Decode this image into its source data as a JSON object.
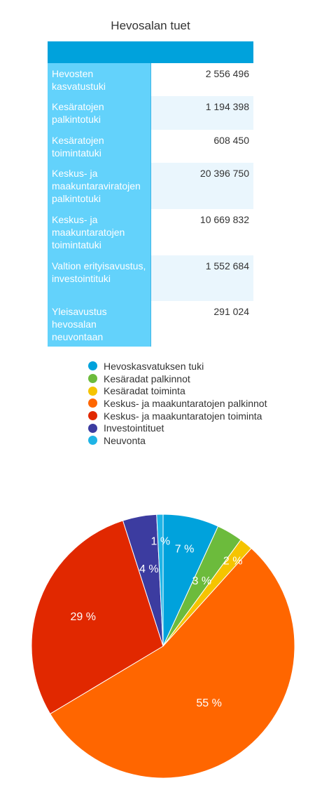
{
  "title": "Hevosalan tuet",
  "table": {
    "rows": [
      {
        "label": "Hevosten kasvatustuki",
        "value": "2 556 496"
      },
      {
        "label": "Kesäratojen palkintotuki",
        "value": "1 194 398"
      },
      {
        "label": "Kesäratojen toimintatuki",
        "value": "608 450"
      },
      {
        "label": "Keskus- ja maakuntaraviratojen palkintotuki",
        "value": "20 396 750"
      },
      {
        "label": "Keskus- ja maakuntaratojen toimintatuki",
        "value": "10 669 832"
      },
      {
        "label": "Valtion erityisavustus, investointituki",
        "value": "1 552 684"
      },
      {
        "label": "Yleisavustus hevosalan neuvontaan",
        "value": "291 024"
      }
    ]
  },
  "chart_data": {
    "type": "pie",
    "title": "Hevosalan tuet",
    "legend_position": "top",
    "series": [
      {
        "name": "Hevoskasvatuksen tuki",
        "value": 2556496,
        "label": "7 %",
        "color": "#00a2dc"
      },
      {
        "name": "Kesäradat palkinnot",
        "value": 1194398,
        "label": "3 %",
        "color": "#6cbb3c"
      },
      {
        "name": "Kesäradat toiminta",
        "value": 608450,
        "label": "2 %",
        "color": "#f5c400"
      },
      {
        "name": "Keskus- ja maakuntaratojen palkinnot",
        "value": 20396750,
        "label": "55 %",
        "color": "#ff6600"
      },
      {
        "name": "Keskus- ja maakuntaratojen toiminta",
        "value": 10669832,
        "label": "29 %",
        "color": "#e12800"
      },
      {
        "name": "Investointituet",
        "value": 1552684,
        "label": "4 %",
        "color": "#3c3ca0"
      },
      {
        "name": "Neuvonta",
        "value": 291024,
        "label": "1 %",
        "color": "#1eb4e6"
      }
    ]
  }
}
